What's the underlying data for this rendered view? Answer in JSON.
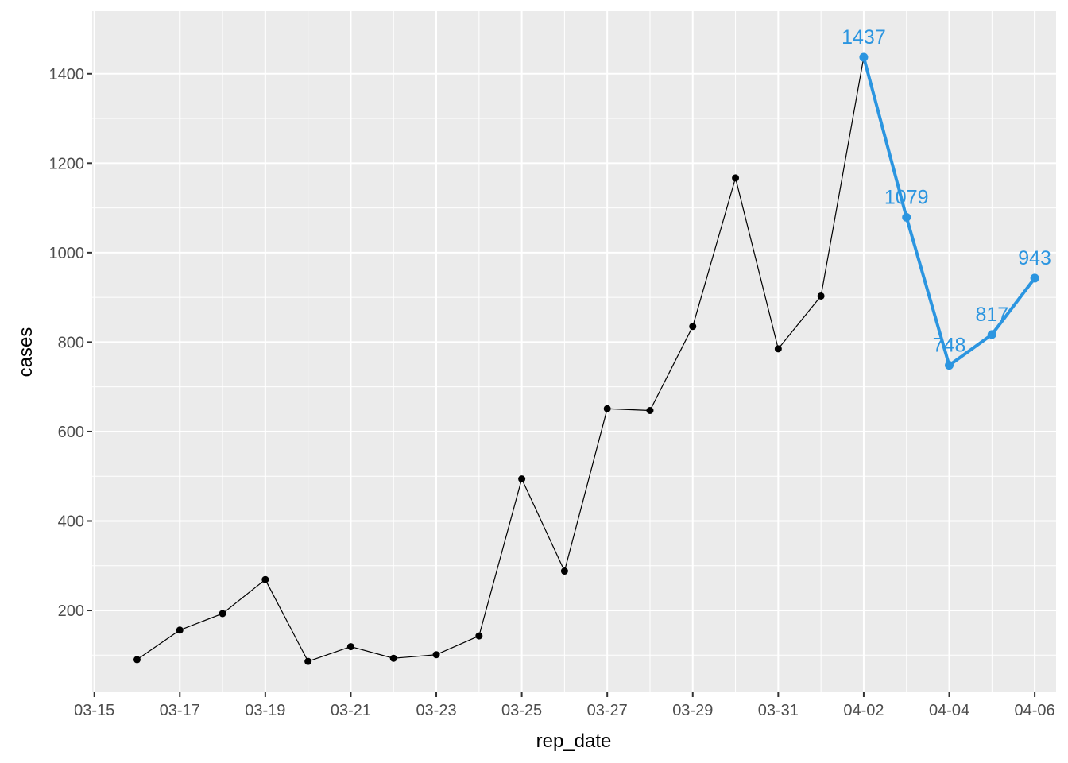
{
  "chart_data": {
    "type": "line",
    "xlabel": "rep_date",
    "ylabel": "cases",
    "x_ticks": [
      "03-15",
      "03-17",
      "03-19",
      "03-21",
      "03-23",
      "03-25",
      "03-27",
      "03-29",
      "03-31",
      "04-02",
      "04-04",
      "04-06"
    ],
    "y_ticks": [
      200,
      400,
      600,
      800,
      1000,
      1200,
      1400
    ],
    "xlim": [
      "03-15",
      "04-06"
    ],
    "ylim": [
      17,
      1540
    ],
    "grid": true,
    "colors": {
      "panel": "#ebebeb",
      "grid": "#ffffff",
      "base_series": "#000000",
      "highlight_series": "#2b95e0",
      "tick_text": "#4d4d4d",
      "tick_mark": "#333333"
    },
    "series": [
      {
        "style": "base",
        "x": [
          "03-16",
          "03-17",
          "03-18",
          "03-19",
          "03-20",
          "03-21",
          "03-22",
          "03-23",
          "03-24",
          "03-25",
          "03-26",
          "03-27",
          "03-28",
          "03-29",
          "03-30",
          "03-31",
          "04-01",
          "04-02"
        ],
        "values": [
          90,
          156,
          193,
          269,
          86,
          119,
          93,
          101,
          143,
          494,
          288,
          651,
          647,
          835,
          1167,
          785,
          903,
          1437
        ]
      },
      {
        "style": "highlight",
        "x": [
          "04-02",
          "04-03",
          "04-04",
          "04-05",
          "04-06"
        ],
        "values": [
          1437,
          1079,
          748,
          817,
          943
        ],
        "labels": [
          "1437",
          "1079",
          "748",
          "817",
          "943"
        ]
      }
    ]
  }
}
